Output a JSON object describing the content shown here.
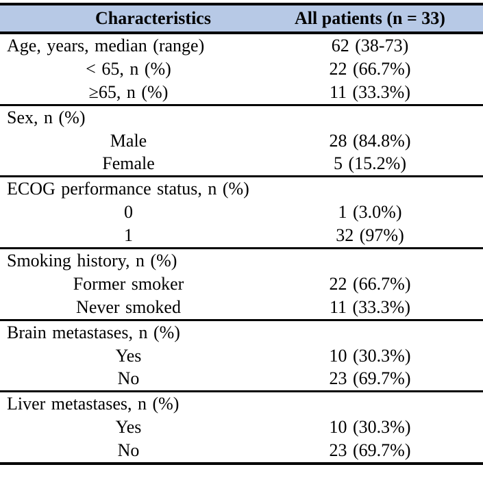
{
  "colors": {
    "header_bg": "#b7c9e6",
    "rule": "#000000"
  },
  "table": {
    "header": {
      "characteristics": "Characteristics",
      "all_patients": "All patients (n = 33)"
    },
    "sections": [
      {
        "rows": [
          {
            "label": "Age, years, median (range)",
            "value": "62 (38-73)",
            "indent": false
          },
          {
            "label": "< 65, n (%)",
            "value": "22 (66.7%)",
            "indent": true
          },
          {
            "label": "≥65, n (%)",
            "value": "11 (33.3%)",
            "indent": true
          }
        ]
      },
      {
        "rows": [
          {
            "label": "Sex, n (%)",
            "value": "",
            "indent": false
          },
          {
            "label": "Male",
            "value": "28 (84.8%)",
            "indent": true
          },
          {
            "label": "Female",
            "value": "5 (15.2%)",
            "indent": true
          }
        ]
      },
      {
        "rows": [
          {
            "label": "ECOG performance status, n (%)",
            "value": "",
            "indent": false
          },
          {
            "label": "0",
            "value": "1 (3.0%)",
            "indent": true
          },
          {
            "label": "1",
            "value": "32 (97%)",
            "indent": true
          }
        ]
      },
      {
        "rows": [
          {
            "label": "Smoking history, n (%)",
            "value": "",
            "indent": false
          },
          {
            "label": "Former smoker",
            "value": "22 (66.7%)",
            "indent": true
          },
          {
            "label": "Never smoked",
            "value": "11 (33.3%)",
            "indent": true
          }
        ]
      },
      {
        "rows": [
          {
            "label": "Brain metastases, n (%)",
            "value": "",
            "indent": false
          },
          {
            "label": "Yes",
            "value": "10 (30.3%)",
            "indent": true
          },
          {
            "label": "No",
            "value": "23 (69.7%)",
            "indent": true
          }
        ]
      },
      {
        "rows": [
          {
            "label": "Liver metastases, n (%)",
            "value": "",
            "indent": false
          },
          {
            "label": "Yes",
            "value": "10 (30.3%)",
            "indent": true
          },
          {
            "label": "No",
            "value": "23 (69.7%)",
            "indent": true
          }
        ]
      }
    ]
  }
}
